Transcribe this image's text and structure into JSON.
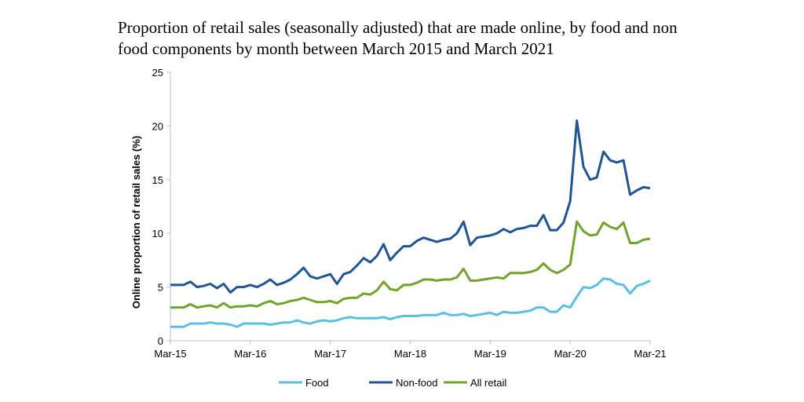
{
  "chart_data": {
    "type": "line",
    "title": "Proportion of retail sales (seasonally adjusted) that are made online, by food and non food components by month between March 2015 and March 2021",
    "xlabel": "",
    "ylabel": "Online proportion of retail sales (%)",
    "ylim": [
      0,
      25
    ],
    "yticks": [
      "0",
      "5",
      "10",
      "15",
      "20",
      "25"
    ],
    "xtick_labels": [
      "Mar-15",
      "Mar-16",
      "Mar-17",
      "Mar-18",
      "Mar-19",
      "Mar-20",
      "Mar-21"
    ],
    "x_start": "Mar-2015",
    "x_end": "Mar-2021",
    "frequency": "monthly",
    "grid": false,
    "legend_placement": "bottom",
    "series": [
      {
        "name": "Food",
        "color": "#5bbfe3",
        "values": [
          1.3,
          1.3,
          1.3,
          1.6,
          1.6,
          1.6,
          1.7,
          1.6,
          1.6,
          1.5,
          1.3,
          1.6,
          1.6,
          1.6,
          1.6,
          1.5,
          1.6,
          1.7,
          1.7,
          1.9,
          1.7,
          1.6,
          1.8,
          1.9,
          1.8,
          1.9,
          2.1,
          2.2,
          2.1,
          2.1,
          2.1,
          2.1,
          2.2,
          2.0,
          2.2,
          2.3,
          2.3,
          2.3,
          2.4,
          2.4,
          2.4,
          2.6,
          2.4,
          2.4,
          2.5,
          2.3,
          2.4,
          2.5,
          2.6,
          2.4,
          2.7,
          2.6,
          2.6,
          2.7,
          2.8,
          3.1,
          3.1,
          2.7,
          2.7,
          3.3,
          3.1,
          4.1,
          5.0,
          4.9,
          5.2,
          5.8,
          5.7,
          5.3,
          5.2,
          4.4,
          5.1,
          5.3,
          5.6
        ]
      },
      {
        "name": "Non-food",
        "color": "#1f5596",
        "values": [
          5.2,
          5.2,
          5.2,
          5.5,
          5.0,
          5.1,
          5.3,
          4.9,
          5.3,
          4.5,
          5.0,
          5.0,
          5.2,
          5.0,
          5.3,
          5.7,
          5.2,
          5.4,
          5.7,
          6.2,
          6.8,
          6.0,
          5.8,
          6.0,
          6.2,
          5.3,
          6.2,
          6.4,
          7.0,
          7.7,
          7.3,
          7.9,
          9.0,
          7.5,
          8.2,
          8.8,
          8.8,
          9.3,
          9.6,
          9.4,
          9.2,
          9.4,
          9.5,
          10.0,
          11.1,
          8.9,
          9.6,
          9.7,
          9.8,
          10.0,
          10.4,
          10.1,
          10.4,
          10.5,
          10.7,
          10.7,
          11.7,
          10.3,
          10.3,
          11.0,
          13.0,
          20.5,
          16.2,
          15.0,
          15.2,
          17.6,
          16.8,
          16.6,
          16.8,
          13.6,
          14.0,
          14.3,
          14.2
        ]
      },
      {
        "name": "All retail",
        "color": "#72a42b",
        "values": [
          3.1,
          3.1,
          3.1,
          3.4,
          3.1,
          3.2,
          3.3,
          3.1,
          3.5,
          3.1,
          3.2,
          3.2,
          3.3,
          3.2,
          3.5,
          3.7,
          3.4,
          3.5,
          3.7,
          3.8,
          4.0,
          3.8,
          3.6,
          3.6,
          3.7,
          3.5,
          3.9,
          4.0,
          4.0,
          4.4,
          4.3,
          4.7,
          5.5,
          4.8,
          4.7,
          5.2,
          5.2,
          5.4,
          5.7,
          5.7,
          5.6,
          5.7,
          5.7,
          5.9,
          6.7,
          5.6,
          5.6,
          5.7,
          5.8,
          5.9,
          5.8,
          6.3,
          6.3,
          6.3,
          6.4,
          6.6,
          7.2,
          6.6,
          6.3,
          6.6,
          7.1,
          11.1,
          10.2,
          9.8,
          9.9,
          11.0,
          10.6,
          10.4,
          11.0,
          9.1,
          9.1,
          9.4,
          9.5
        ]
      }
    ]
  }
}
